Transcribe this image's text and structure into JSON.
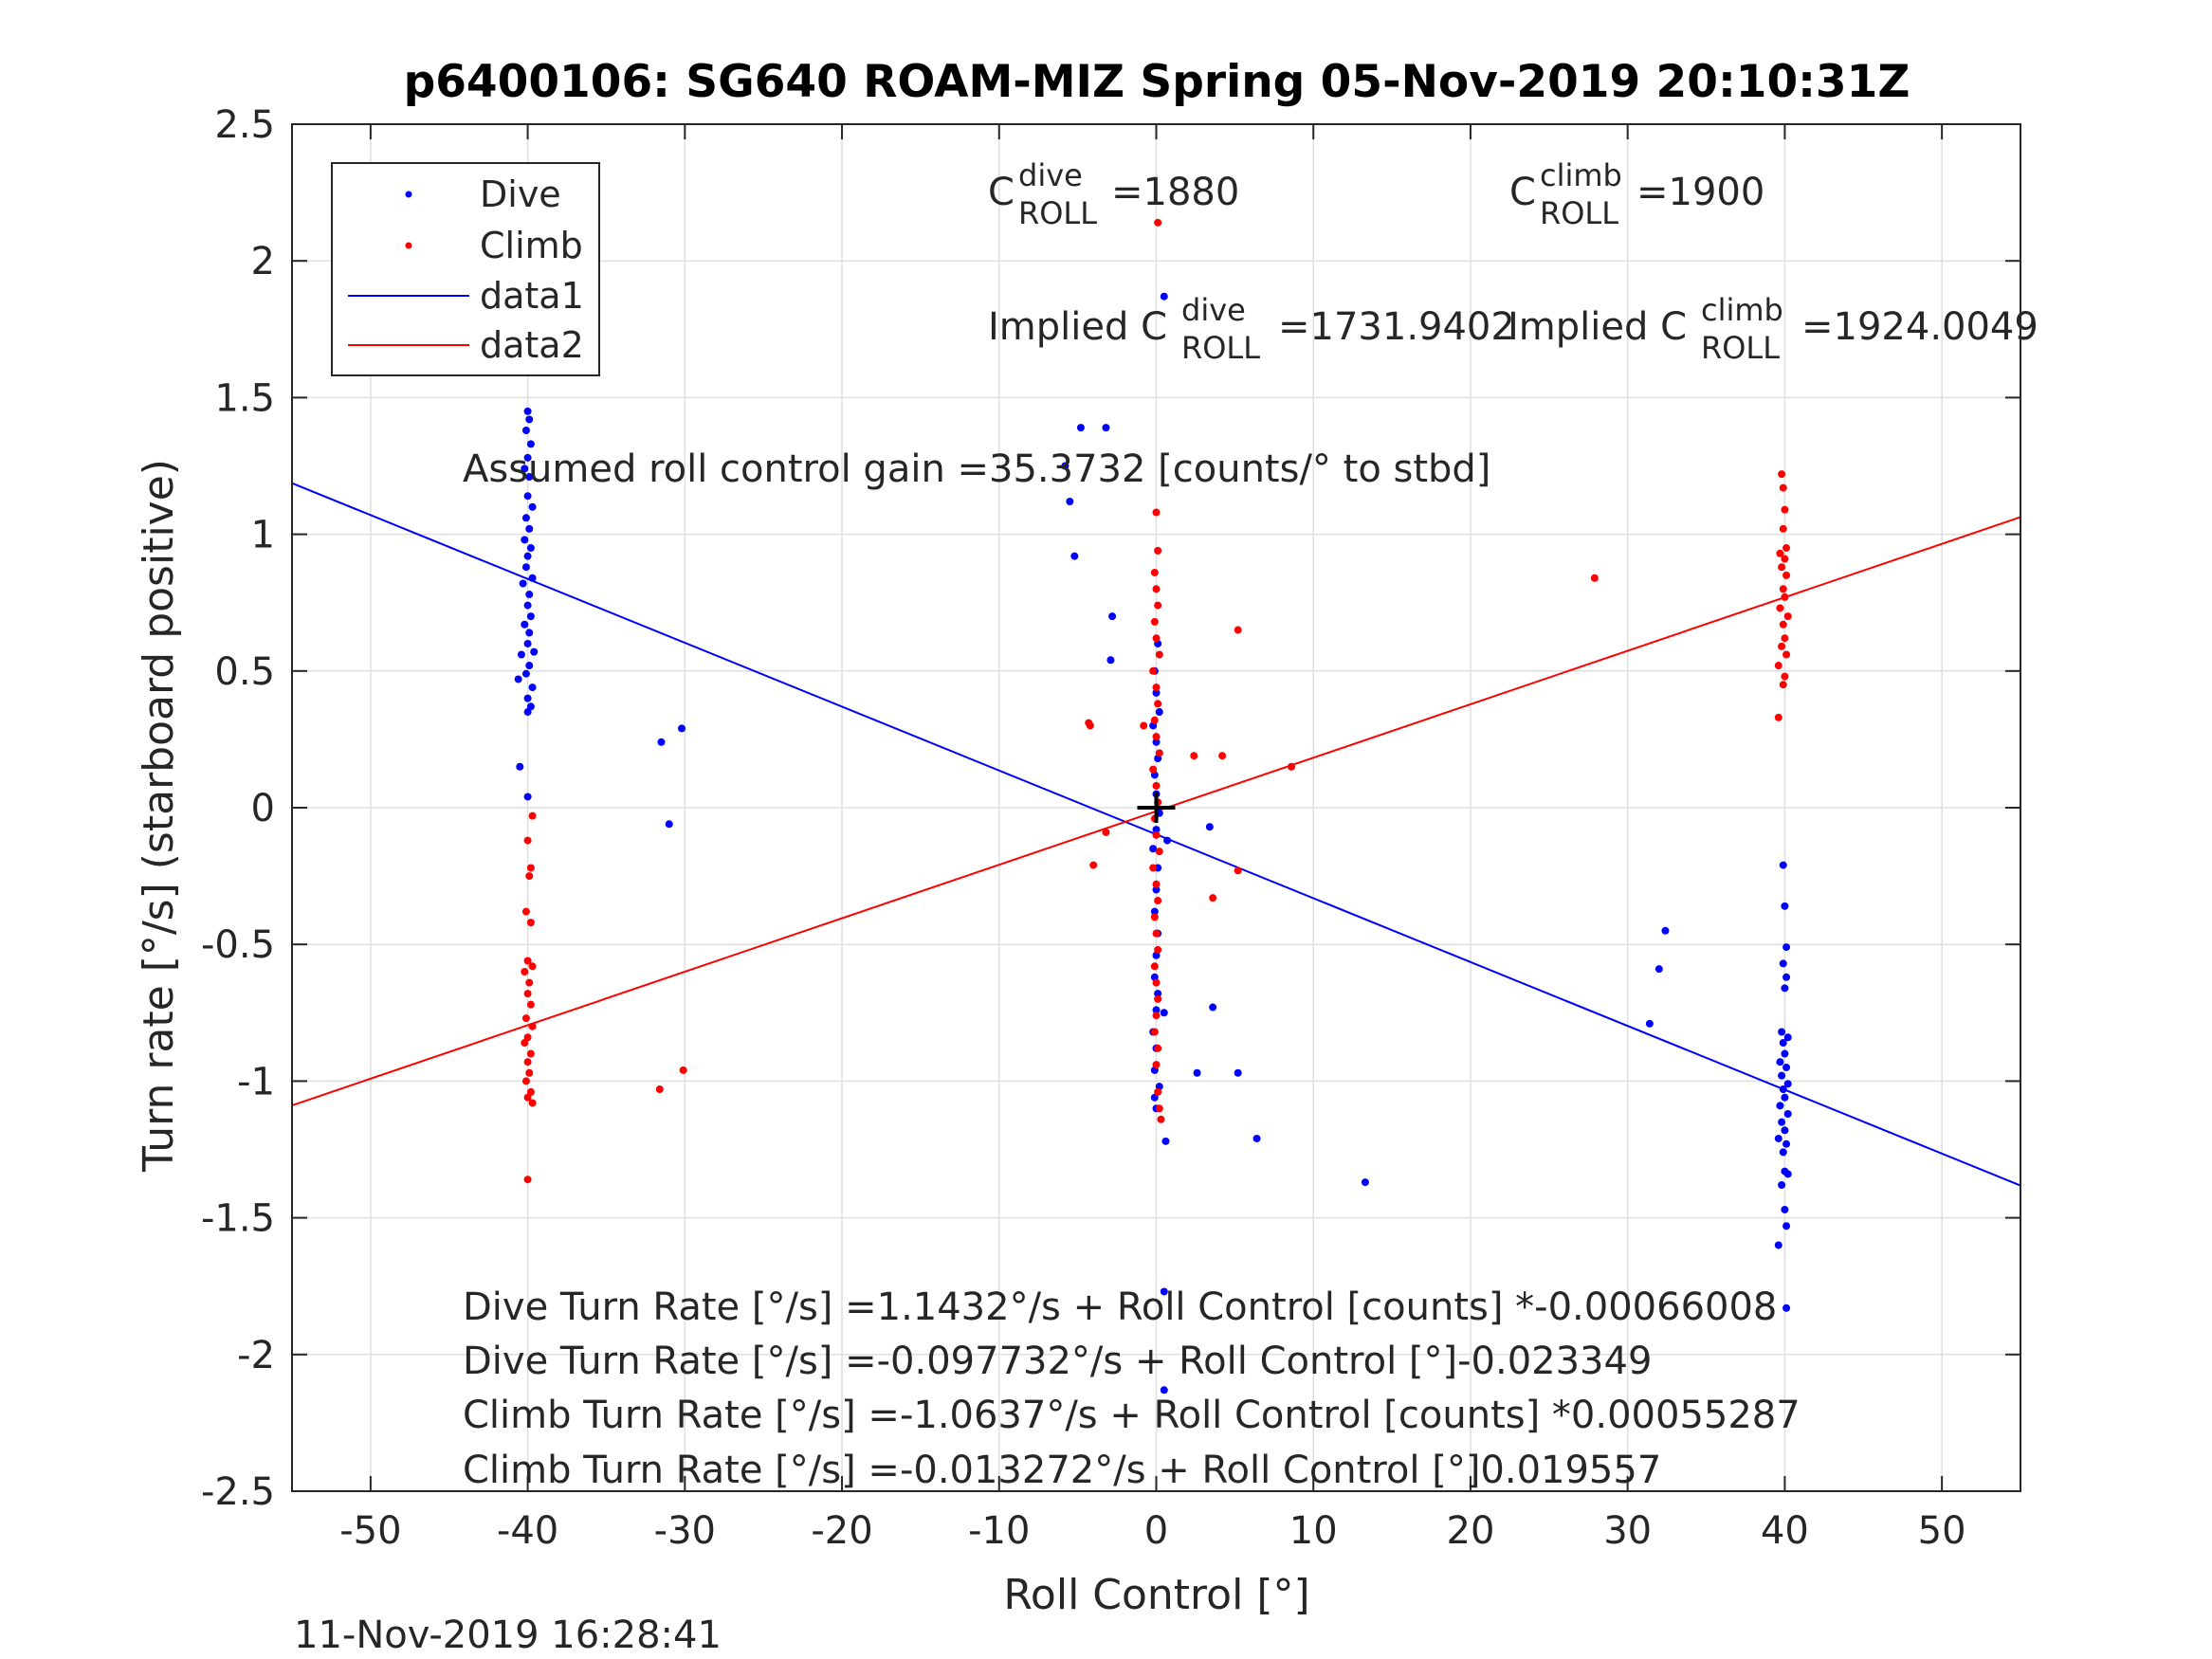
{
  "chart_data": {
    "type": "scatter",
    "title": "p6400106: SG640 ROAM-MIZ Spring 05-Nov-2019 20:10:31Z",
    "xlabel": "Roll Control [°]",
    "ylabel": "Turn rate [°/s] (starboard positive)",
    "xlim": [
      -55,
      55
    ],
    "ylim": [
      -2.5,
      2.5
    ],
    "grid": true,
    "legend_position": "top-left",
    "xticks": [
      -50,
      -40,
      -30,
      -20,
      -10,
      0,
      10,
      20,
      30,
      40,
      50
    ],
    "xtick_labels": [
      "-50",
      "-40",
      "-30",
      "-20",
      "-10",
      "0",
      "10",
      "20",
      "30",
      "40",
      "50"
    ],
    "yticks": [
      -2.5,
      -2,
      -1.5,
      -1,
      -0.5,
      0,
      0.5,
      1,
      1.5,
      2,
      2.5
    ],
    "ytick_labels": [
      "-2.5",
      "-2",
      "-1.5",
      "-1",
      "-0.5",
      "0",
      "0.5",
      "1",
      "1.5",
      "2",
      "2.5"
    ],
    "colors": {
      "dive": "#0000ff",
      "climb": "#ff0000",
      "axes": "#262626",
      "grid": "#dfdfdf"
    },
    "legend": [
      "Dive",
      "Climb",
      "data1",
      "data2"
    ],
    "series": [
      {
        "name": "Dive",
        "kind": "points",
        "color": "#0000ff",
        "points": [
          [
            -40,
            1.62
          ],
          [
            -39.8,
            1.6
          ],
          [
            -40,
            1.45
          ],
          [
            -39.9,
            1.42
          ],
          [
            -40.1,
            1.38
          ],
          [
            -39.8,
            1.33
          ],
          [
            -40,
            1.28
          ],
          [
            -40.2,
            1.24
          ],
          [
            -39.9,
            1.21
          ],
          [
            -40,
            1.14
          ],
          [
            -39.7,
            1.1
          ],
          [
            -40.1,
            1.06
          ],
          [
            -39.9,
            1.02
          ],
          [
            -40.2,
            0.98
          ],
          [
            -39.8,
            0.95
          ],
          [
            -40,
            0.92
          ],
          [
            -40.1,
            0.88
          ],
          [
            -39.7,
            0.84
          ],
          [
            -40.3,
            0.82
          ],
          [
            -39.9,
            0.78
          ],
          [
            -40,
            0.74
          ],
          [
            -39.8,
            0.7
          ],
          [
            -40.2,
            0.67
          ],
          [
            -39.9,
            0.64
          ],
          [
            -40,
            0.6
          ],
          [
            -39.6,
            0.57
          ],
          [
            -40.4,
            0.56
          ],
          [
            -39.9,
            0.52
          ],
          [
            -40.1,
            0.49
          ],
          [
            -40.6,
            0.47
          ],
          [
            -39.7,
            0.44
          ],
          [
            -40,
            0.4
          ],
          [
            -39.8,
            0.37
          ],
          [
            -40,
            0.35
          ],
          [
            -40.5,
            0.15
          ],
          [
            -40,
            0.04
          ],
          [
            -31.5,
            0.24
          ],
          [
            -30.2,
            0.29
          ],
          [
            -31,
            -0.06
          ],
          [
            -5.8,
            1.25
          ],
          [
            -5.5,
            1.12
          ],
          [
            -5.2,
            0.92
          ],
          [
            -4.8,
            1.39
          ],
          [
            -3.2,
            1.39
          ],
          [
            -2.8,
            0.7
          ],
          [
            -2.9,
            0.54
          ],
          [
            0.1,
            0.6
          ],
          [
            -0.1,
            0.5
          ],
          [
            0,
            0.42
          ],
          [
            0.2,
            0.35
          ],
          [
            -0.2,
            0.3
          ],
          [
            0,
            0.24
          ],
          [
            0.1,
            0.18
          ],
          [
            -0.1,
            0.12
          ],
          [
            0,
            0.05
          ],
          [
            0.2,
            -0.02
          ],
          [
            0,
            -0.08
          ],
          [
            -0.2,
            -0.15
          ],
          [
            0.1,
            -0.22
          ],
          [
            0,
            -0.3
          ],
          [
            -0.1,
            -0.38
          ],
          [
            0.1,
            -0.46
          ],
          [
            0,
            -0.54
          ],
          [
            -0.1,
            -0.62
          ],
          [
            0.1,
            -0.68
          ],
          [
            0,
            -0.74
          ],
          [
            0.5,
            -0.75
          ],
          [
            -0.2,
            -0.82
          ],
          [
            0,
            -0.88
          ],
          [
            -0.1,
            -0.96
          ],
          [
            0.2,
            -1.02
          ],
          [
            -0.1,
            -1.06
          ],
          [
            0,
            -1.1
          ],
          [
            0.6,
            -1.22
          ],
          [
            0.5,
            1.87
          ],
          [
            0.5,
            -1.77
          ],
          [
            0.5,
            -2.13
          ],
          [
            0.7,
            -0.12
          ],
          [
            3.4,
            -0.07
          ],
          [
            3.6,
            -0.73
          ],
          [
            2.6,
            -0.97
          ],
          [
            5.2,
            -0.97
          ],
          [
            6.4,
            -1.21
          ],
          [
            13.3,
            -1.37
          ],
          [
            31.4,
            -0.79
          ],
          [
            32,
            -0.59
          ],
          [
            32.4,
            -0.45
          ],
          [
            39.9,
            -0.21
          ],
          [
            40,
            -0.36
          ],
          [
            40.1,
            -0.51
          ],
          [
            39.9,
            -0.57
          ],
          [
            40.1,
            -0.62
          ],
          [
            40,
            -0.66
          ],
          [
            39.8,
            -0.82
          ],
          [
            40.2,
            -0.84
          ],
          [
            39.9,
            -0.86
          ],
          [
            40,
            -0.9
          ],
          [
            39.7,
            -0.93
          ],
          [
            40.1,
            -0.95
          ],
          [
            39.8,
            -0.98
          ],
          [
            40.2,
            -1.01
          ],
          [
            39.9,
            -1.03
          ],
          [
            40,
            -1.06
          ],
          [
            39.7,
            -1.09
          ],
          [
            40.2,
            -1.12
          ],
          [
            39.8,
            -1.15
          ],
          [
            40,
            -1.18
          ],
          [
            39.6,
            -1.21
          ],
          [
            40.1,
            -1.23
          ],
          [
            39.9,
            -1.26
          ],
          [
            40,
            -1.33
          ],
          [
            40.2,
            -1.34
          ],
          [
            39.8,
            -1.38
          ],
          [
            40,
            -1.47
          ],
          [
            40.1,
            -1.53
          ],
          [
            39.6,
            -1.6
          ],
          [
            40.1,
            -1.83
          ]
        ]
      },
      {
        "name": "Climb",
        "kind": "points",
        "color": "#ff0000",
        "points": [
          [
            -39.7,
            -0.03
          ],
          [
            -40,
            -0.12
          ],
          [
            -39.8,
            -0.22
          ],
          [
            -39.9,
            -0.25
          ],
          [
            -40.1,
            -0.38
          ],
          [
            -39.8,
            -0.42
          ],
          [
            -40,
            -0.56
          ],
          [
            -39.7,
            -0.58
          ],
          [
            -40.2,
            -0.6
          ],
          [
            -39.9,
            -0.64
          ],
          [
            -40,
            -0.68
          ],
          [
            -39.8,
            -0.72
          ],
          [
            -40.1,
            -0.77
          ],
          [
            -39.7,
            -0.8
          ],
          [
            -40,
            -0.84
          ],
          [
            -40.2,
            -0.86
          ],
          [
            -39.8,
            -0.9
          ],
          [
            -40,
            -0.93
          ],
          [
            -39.9,
            -0.97
          ],
          [
            -40.1,
            -1.0
          ],
          [
            -39.8,
            -1.04
          ],
          [
            -40,
            -1.06
          ],
          [
            -39.7,
            -1.08
          ],
          [
            -40,
            -1.36
          ],
          [
            -31.6,
            -1.03
          ],
          [
            -30.1,
            -0.96
          ],
          [
            0.1,
            2.14
          ],
          [
            0,
            1.08
          ],
          [
            0.1,
            0.94
          ],
          [
            -0.1,
            0.86
          ],
          [
            0,
            0.8
          ],
          [
            0.1,
            0.74
          ],
          [
            -0.1,
            0.68
          ],
          [
            0,
            0.62
          ],
          [
            0.2,
            0.56
          ],
          [
            -0.2,
            0.5
          ],
          [
            0,
            0.44
          ],
          [
            0.1,
            0.38
          ],
          [
            -0.1,
            0.32
          ],
          [
            0,
            0.26
          ],
          [
            0.2,
            0.2
          ],
          [
            -0.2,
            0.14
          ],
          [
            0,
            0.08
          ],
          [
            0.1,
            0.02
          ],
          [
            -0.1,
            -0.04
          ],
          [
            0,
            -0.1
          ],
          [
            0.2,
            -0.16
          ],
          [
            -0.2,
            -0.22
          ],
          [
            0,
            -0.28
          ],
          [
            0.1,
            -0.34
          ],
          [
            -0.1,
            -0.4
          ],
          [
            0,
            -0.46
          ],
          [
            0.1,
            -0.52
          ],
          [
            -0.1,
            -0.58
          ],
          [
            0,
            -0.64
          ],
          [
            0.1,
            -0.7
          ],
          [
            0,
            -0.76
          ],
          [
            -0.1,
            -0.82
          ],
          [
            0.1,
            -0.88
          ],
          [
            0,
            -0.94
          ],
          [
            0.1,
            -1.04
          ],
          [
            0.2,
            -1.1
          ],
          [
            0.3,
            -1.14
          ],
          [
            -4.3,
            0.31
          ],
          [
            -4.2,
            0.3
          ],
          [
            -3.2,
            -0.09
          ],
          [
            -4,
            -0.21
          ],
          [
            -0.8,
            0.3
          ],
          [
            2.4,
            0.19
          ],
          [
            4.2,
            0.19
          ],
          [
            5.2,
            0.65
          ],
          [
            3.6,
            -0.33
          ],
          [
            5.2,
            -0.23
          ],
          [
            8.6,
            0.15
          ],
          [
            27.9,
            0.84
          ],
          [
            39.8,
            1.22
          ],
          [
            39.9,
            1.17
          ],
          [
            40,
            1.09
          ],
          [
            39.9,
            1.02
          ],
          [
            40.1,
            0.95
          ],
          [
            39.7,
            0.93
          ],
          [
            40,
            0.91
          ],
          [
            39.8,
            0.88
          ],
          [
            40.1,
            0.85
          ],
          [
            39.9,
            0.8
          ],
          [
            40,
            0.77
          ],
          [
            39.7,
            0.73
          ],
          [
            40.2,
            0.7
          ],
          [
            39.9,
            0.67
          ],
          [
            40,
            0.62
          ],
          [
            39.8,
            0.59
          ],
          [
            40.1,
            0.56
          ],
          [
            39.6,
            0.52
          ],
          [
            40,
            0.48
          ],
          [
            39.9,
            0.45
          ],
          [
            39.6,
            0.33
          ]
        ]
      },
      {
        "name": "data1",
        "kind": "line",
        "color": "#0000ff",
        "x": [
          -55,
          55
        ],
        "y": [
          1.187,
          -1.382
        ]
      },
      {
        "name": "data2",
        "kind": "line",
        "color": "#ff0000",
        "x": [
          -55,
          55
        ],
        "y": [
          -1.089,
          1.063
        ]
      }
    ],
    "annotations": {
      "c_dive": {
        "base": "C",
        "sup": "dive",
        "sub": "ROLL",
        "value": "=1880"
      },
      "c_climb": {
        "base": "C",
        "sup": "climb",
        "sub": "ROLL",
        "value": "=1900"
      },
      "implied_dive": {
        "base": "Implied C",
        "sup": "dive",
        "sub": "ROLL",
        "value": "=1731.9402"
      },
      "implied_climb": {
        "base": "Implied C",
        "sup": "climb",
        "sub": "ROLL",
        "value": "=1924.0049"
      },
      "gain": "Assumed roll control gain =35.3732 [counts/° to stbd]",
      "eq1": "Dive Turn Rate [°/s] =1.1432°/s + Roll Control [counts] *-0.00066008",
      "eq2": "Dive Turn Rate [°/s] =-0.097732°/s + Roll Control [°]-0.023349",
      "eq3": "Climb Turn Rate [°/s] =-1.0637°/s + Roll Control [counts] *0.00055287",
      "eq4": "Climb Turn Rate [°/s] =-0.013272°/s + Roll Control [°]0.019557"
    },
    "center_marker": {
      "x": 0,
      "y": 0
    },
    "timestamp": "11-Nov-2019 16:28:41"
  }
}
